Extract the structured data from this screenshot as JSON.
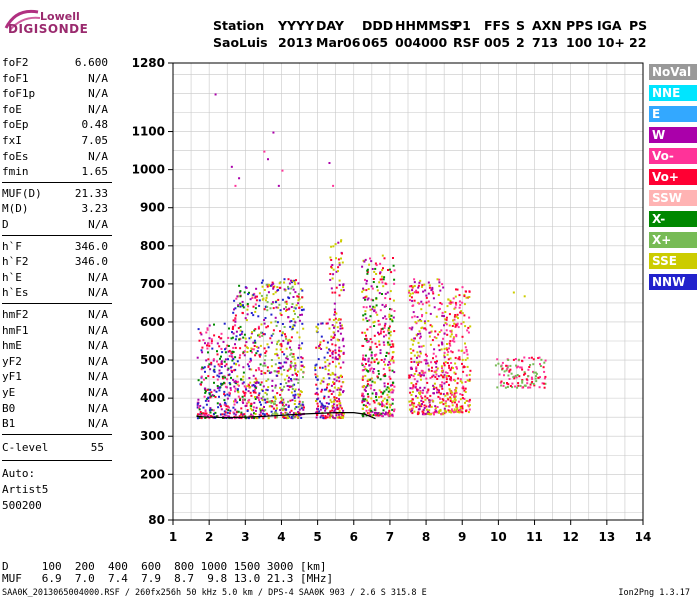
{
  "logo": {
    "line1": "Lowell",
    "line2": "DIGISONDE"
  },
  "header": {
    "row1": [
      "Station",
      "YYYY",
      "DAY",
      "DDD",
      "HHMMSS",
      "P1",
      "FFS",
      "S",
      "AXN",
      "PPS",
      "IGA",
      "PS"
    ],
    "row2": [
      "SaoLuis",
      "2013",
      "Mar06",
      "065",
      "004000",
      "RSF",
      "005",
      "2",
      "713",
      "100",
      "10+",
      "22"
    ]
  },
  "params_group1": [
    {
      "k": "foF2",
      "v": "6.600"
    },
    {
      "k": "foF1",
      "v": "N/A"
    },
    {
      "k": "foF1p",
      "v": "N/A"
    },
    {
      "k": "foE",
      "v": "N/A"
    },
    {
      "k": "foEp",
      "v": "0.48"
    },
    {
      "k": "fxI",
      "v": "7.05"
    },
    {
      "k": "foEs",
      "v": "N/A"
    },
    {
      "k": "fmin",
      "v": "1.65"
    }
  ],
  "params_group2": [
    {
      "k": "MUF(D)",
      "v": "21.33"
    },
    {
      "k": "M(D)",
      "v": "3.23"
    },
    {
      "k": "D",
      "v": "N/A"
    }
  ],
  "params_group3": [
    {
      "k": "h`F",
      "v": "346.0"
    },
    {
      "k": "h`F2",
      "v": "346.0"
    },
    {
      "k": "h`E",
      "v": "N/A"
    },
    {
      "k": "h`Es",
      "v": "N/A"
    }
  ],
  "params_group4": [
    {
      "k": "hmF2",
      "v": "N/A"
    },
    {
      "k": "hmF1",
      "v": "N/A"
    },
    {
      "k": "hmE",
      "v": "N/A"
    },
    {
      "k": "yF2",
      "v": "N/A"
    },
    {
      "k": "yF1",
      "v": "N/A"
    },
    {
      "k": "yE",
      "v": "N/A"
    },
    {
      "k": "B0",
      "v": "N/A"
    },
    {
      "k": "B1",
      "v": "N/A"
    }
  ],
  "clevel": {
    "k": "C-level",
    "v": "55"
  },
  "notes": [
    "Auto:",
    "Artist5",
    "500200"
  ],
  "legend": [
    {
      "label": "NoVal",
      "color": "#999999"
    },
    {
      "label": "NNE",
      "color": "#00e5ff"
    },
    {
      "label": "E",
      "color": "#33a8ff"
    },
    {
      "label": "W",
      "color": "#aa00aa"
    },
    {
      "label": "Vo-",
      "color": "#ff3399"
    },
    {
      "label": "Vo+",
      "color": "#ff0033"
    },
    {
      "label": "SSW",
      "color": "#ffb3b3"
    },
    {
      "label": "X-",
      "color": "#008800"
    },
    {
      "label": "X+",
      "color": "#77bb55"
    },
    {
      "label": "SSE",
      "color": "#cccc00"
    },
    {
      "label": "NNW",
      "color": "#2222cc"
    }
  ],
  "bottom": {
    "d_row": "D     100  200  400  600  800 1000 1500 3000 [km]",
    "muf_row": "MUF   6.9  7.0  7.4  7.9  8.7  9.8 13.0 21.3 [MHz]"
  },
  "footer": {
    "left": "SAA0K_2013065004000.RSF / 260fx256h 50 kHz 5.0 km / DPS-4 SAA0K 903 / 2.6 S 315.8 E",
    "right": "Ion2Png 1.3.17"
  },
  "chart_data": {
    "type": "scatter",
    "xlim": [
      1,
      14
    ],
    "ylim": [
      80,
      1280
    ],
    "xticks": [
      1,
      2,
      3,
      4,
      5,
      6,
      7,
      8,
      9,
      10,
      11,
      12,
      13,
      14
    ],
    "yticks": [
      80,
      200,
      300,
      400,
      500,
      600,
      700,
      800,
      900,
      1000,
      1100,
      1280
    ],
    "grid": true,
    "legend_position": "right",
    "trace": {
      "x": [
        1.65,
        2.0,
        2.5,
        3.0,
        3.5,
        4.0,
        4.5,
        5.0,
        5.5,
        6.0,
        6.3,
        6.6
      ],
      "y": [
        352,
        350,
        349,
        350,
        352,
        355,
        358,
        360,
        362,
        362,
        358,
        346
      ]
    },
    "echo_regions": [
      {
        "x": [
          1.65,
          2.6
        ],
        "y": [
          350,
          600
        ],
        "colors": [
          "#ff0033",
          "#aa00aa",
          "#2222cc",
          "#ff3399",
          "#008800"
        ]
      },
      {
        "x": [
          2.6,
          3.4
        ],
        "y": [
          350,
          700
        ],
        "colors": [
          "#ff0033",
          "#aa00aa",
          "#2222cc",
          "#cccc00",
          "#008800",
          "#ff3399"
        ]
      },
      {
        "x": [
          3.4,
          4.6
        ],
        "y": [
          350,
          720
        ],
        "colors": [
          "#cccc00",
          "#ff0033",
          "#aa00aa",
          "#2222cc",
          "#77bb55"
        ]
      },
      {
        "x": [
          4.9,
          5.3
        ],
        "y": [
          350,
          600
        ],
        "colors": [
          "#aa00aa",
          "#ff0033",
          "#cccc00",
          "#2222cc"
        ]
      },
      {
        "x": [
          5.3,
          5.7
        ],
        "y": [
          350,
          820
        ],
        "colors": [
          "#cccc00",
          "#ff0033",
          "#aa00aa"
        ]
      },
      {
        "x": [
          6.2,
          7.1
        ],
        "y": [
          355,
          780
        ],
        "colors": [
          "#cccc00",
          "#ff0033",
          "#aa00aa",
          "#008800",
          "#ff3399"
        ]
      },
      {
        "x": [
          7.5,
          8.5
        ],
        "y": [
          360,
          720
        ],
        "colors": [
          "#cccc00",
          "#ff0033",
          "#ff3399",
          "#aa00aa"
        ]
      },
      {
        "x": [
          8.5,
          9.2
        ],
        "y": [
          365,
          700
        ],
        "colors": [
          "#ff0033",
          "#cccc00",
          "#ff3399"
        ]
      },
      {
        "x": [
          9.9,
          11.3
        ],
        "y": [
          430,
          510
        ],
        "colors": [
          "#ff0033",
          "#ff3399",
          "#77bb55"
        ]
      }
    ],
    "sparse_spikes": [
      {
        "x": 2.6,
        "y": 1010,
        "color": "#aa00aa"
      },
      {
        "x": 2.7,
        "y": 960,
        "color": "#ff3399"
      },
      {
        "x": 2.8,
        "y": 980,
        "color": "#aa00aa"
      },
      {
        "x": 3.5,
        "y": 1050,
        "color": "#ff3399"
      },
      {
        "x": 3.6,
        "y": 1030,
        "color": "#aa00aa"
      },
      {
        "x": 3.75,
        "y": 1100,
        "color": "#aa00aa"
      },
      {
        "x": 4.0,
        "y": 1000,
        "color": "#ff3399"
      },
      {
        "x": 3.9,
        "y": 960,
        "color": "#aa00aa"
      },
      {
        "x": 5.3,
        "y": 1020,
        "color": "#aa00aa"
      },
      {
        "x": 5.4,
        "y": 960,
        "color": "#ff3399"
      },
      {
        "x": 2.15,
        "y": 1200,
        "color": "#aa00aa"
      },
      {
        "x": 10.4,
        "y": 680,
        "color": "#cccc00"
      },
      {
        "x": 10.7,
        "y": 670,
        "color": "#cccc00"
      }
    ]
  }
}
